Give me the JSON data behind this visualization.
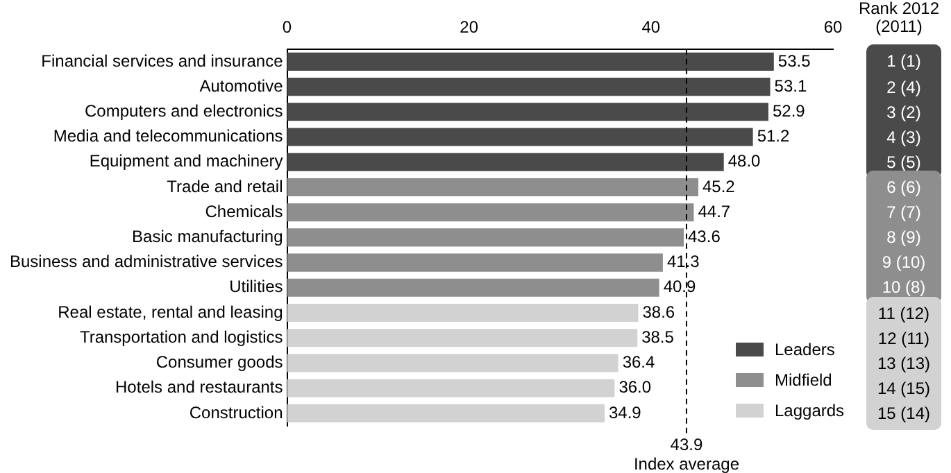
{
  "chart_data": {
    "type": "bar",
    "orientation": "horizontal",
    "categories": [
      "Financial services and insurance",
      "Automotive",
      "Computers and electronics",
      "Media and telecommunications",
      "Equipment and machinery",
      "Trade and retail",
      "Chemicals",
      "Basic manufacturing",
      "Business and administrative services",
      "Utilities",
      "Real estate, rental and leasing",
      "Transportation and logistics",
      "Consumer goods",
      "Hotels and restaurants",
      "Construction"
    ],
    "series": [
      {
        "name": "Leaders",
        "color": "#4a4a4a",
        "values": [
          53.5,
          53.1,
          52.9,
          51.2,
          48.0,
          null,
          null,
          null,
          null,
          null,
          null,
          null,
          null,
          null,
          null
        ],
        "value_labels": [
          "53.5",
          "53.1",
          "52.9",
          "51.2",
          "48.0",
          null,
          null,
          null,
          null,
          null,
          null,
          null,
          null,
          null,
          null
        ]
      },
      {
        "name": "Midfield",
        "color": "#8e8e8e",
        "values": [
          null,
          null,
          null,
          null,
          null,
          45.2,
          44.7,
          43.6,
          41.3,
          40.9,
          null,
          null,
          null,
          null,
          null
        ],
        "value_labels": [
          null,
          null,
          null,
          null,
          null,
          "45.2",
          "44.7",
          "43.6",
          "41.3",
          "40.9",
          null,
          null,
          null,
          null,
          null
        ]
      },
      {
        "name": "Laggards",
        "color": "#d2d2d2",
        "values": [
          null,
          null,
          null,
          null,
          null,
          null,
          null,
          null,
          null,
          null,
          38.6,
          38.5,
          36.4,
          36.0,
          34.9
        ],
        "value_labels": [
          null,
          null,
          null,
          null,
          null,
          null,
          null,
          null,
          null,
          null,
          "38.6",
          "38.5",
          "36.4",
          "36.0",
          "34.9"
        ]
      }
    ],
    "xlim": [
      0,
      60
    ],
    "xticks": [
      0,
      20,
      40,
      60
    ],
    "grid": false,
    "legend": "bottom right",
    "ref_lines": [
      {
        "axis": "x",
        "value": 43.9,
        "label": "Index average",
        "line_style": "dashed",
        "color": "#000000"
      }
    ],
    "annotations": [
      "Rank 2012 (2011)",
      "1 (1)",
      "2 (4)",
      "3 (2)",
      "4 (3)",
      "5 (5)",
      "6 (6)",
      "7 (7)",
      "8 (9)",
      "9 (10)",
      "10 (8)",
      "11 (12)",
      "12 (11)",
      "13 (13)",
      "14 (15)",
      "15 (14)",
      "43.9"
    ]
  }
}
